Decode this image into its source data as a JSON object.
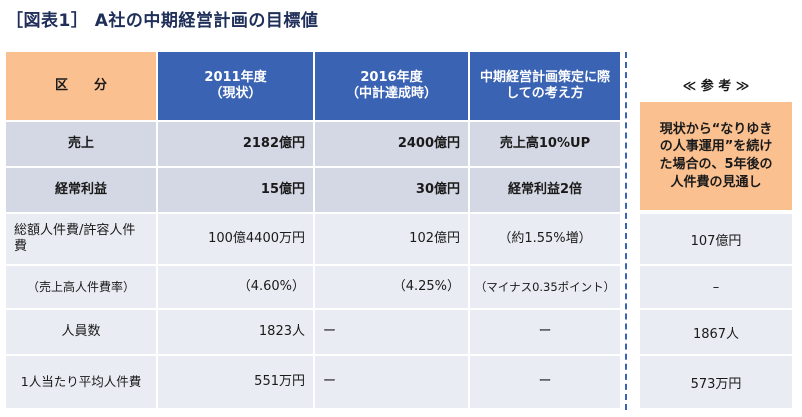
{
  "title": "［図表1］ A社の中期経営計画の目標値",
  "header": {
    "category": "区　　分",
    "col_2011": "2011年度\n（現状）",
    "col_2016": "2016年度\n（中計達成時）",
    "col_policy": "中期経営計画策定に際\nしての考え方"
  },
  "rows": [
    {
      "label": "売上",
      "v2011": "2182億円",
      "v2016": "2400億円",
      "policy": "売上高10%UP",
      "ref": ""
    },
    {
      "label": "経常利益",
      "v2011": "15億円",
      "v2016": "30億円",
      "policy": "経常利益2倍",
      "ref": ""
    },
    {
      "label": "総額人件費/許容人件\n費",
      "v2011": "100億4400万円",
      "v2016": "102億円",
      "policy": "（約1.55%増）",
      "ref": "107億円"
    },
    {
      "label": "（売上高人件費率）",
      "v2011": "（4.60%）",
      "v2016": "（4.25%）",
      "policy": "（マイナス0.35ポイント）",
      "ref": "–"
    },
    {
      "label": "人員数",
      "v2011": "1823人",
      "v2016": "ー",
      "policy": "ー",
      "ref": "1867人"
    },
    {
      "label": "1人当たり平均人件費",
      "v2011": "551万円",
      "v2016": "ー",
      "policy": "ー",
      "ref": "573万円"
    }
  ],
  "reference": {
    "label": "≪ 参 考 ≫",
    "note": "現状から“なりゆき\nの人事運用”を続け\nた場合の、5年後の\n人件費の見通し"
  },
  "colors": {
    "header_orange": "#fac090",
    "header_blue": "#3a63b3",
    "row_gray": "#d3d8e4",
    "row_light": "#e9ecf3"
  }
}
